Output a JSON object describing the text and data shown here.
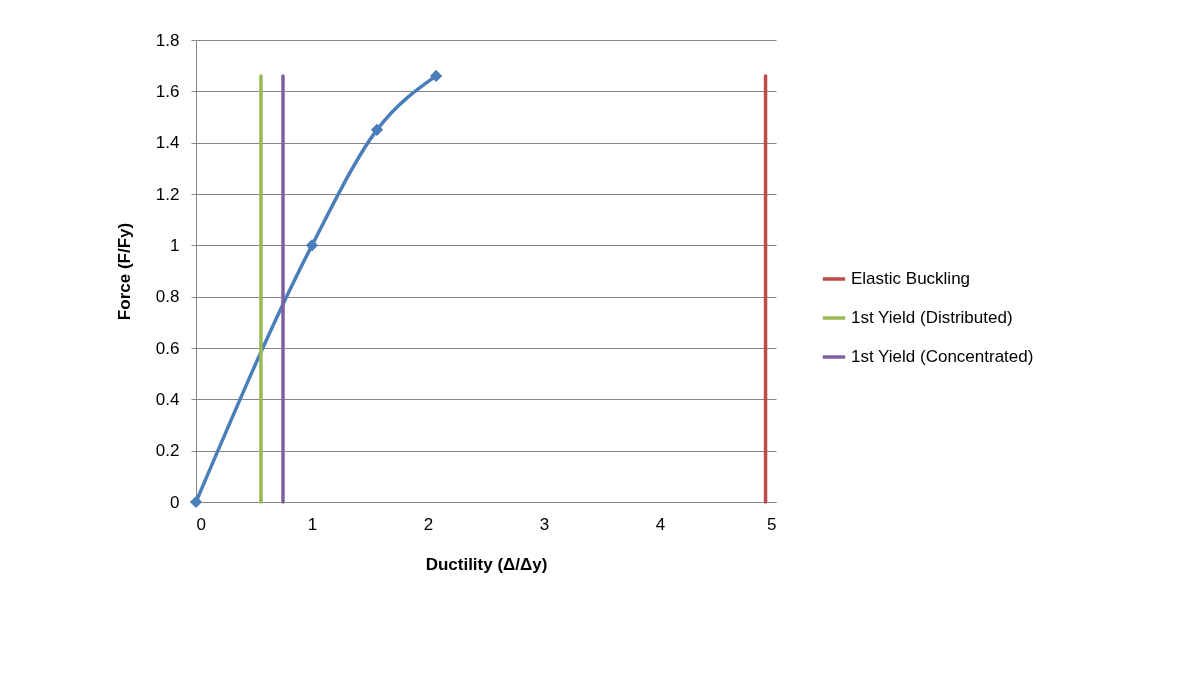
{
  "chart_data": {
    "type": "line",
    "xlabel": "Ductility (Δ/Δy)",
    "ylabel": "Force (F/Fy)",
    "xlim": [
      0,
      5
    ],
    "xticks": [
      0,
      1,
      2,
      3,
      4,
      5
    ],
    "ylim": [
      0,
      1.8
    ],
    "yticks": [
      0,
      0.2,
      0.4,
      0.6,
      0.8,
      1,
      1.2,
      1.4,
      1.6,
      1.8
    ],
    "grid": "y",
    "legend": "right",
    "marker": "diamond",
    "series": [
      {
        "color": "#4a7ebb",
        "x": [
          0,
          1,
          1.56,
          2.07
        ],
        "values": [
          0,
          1,
          1.45,
          1.66
        ]
      },
      {
        "name": "Elastic Buckling",
        "color": "#be4b48",
        "x": [
          4.91,
          4.91
        ],
        "values": [
          0,
          1.66
        ],
        "marker": "none"
      },
      {
        "name": "1st Yield (Distributed)",
        "color": "#98b954",
        "x": [
          0.56,
          0.56
        ],
        "values": [
          0,
          1.66
        ],
        "marker": "none"
      },
      {
        "name": "1st Yield (Concentrated)",
        "color": "#7d60a0",
        "x": [
          0.75,
          0.75
        ],
        "values": [
          0,
          1.66
        ],
        "marker": "none"
      }
    ]
  }
}
